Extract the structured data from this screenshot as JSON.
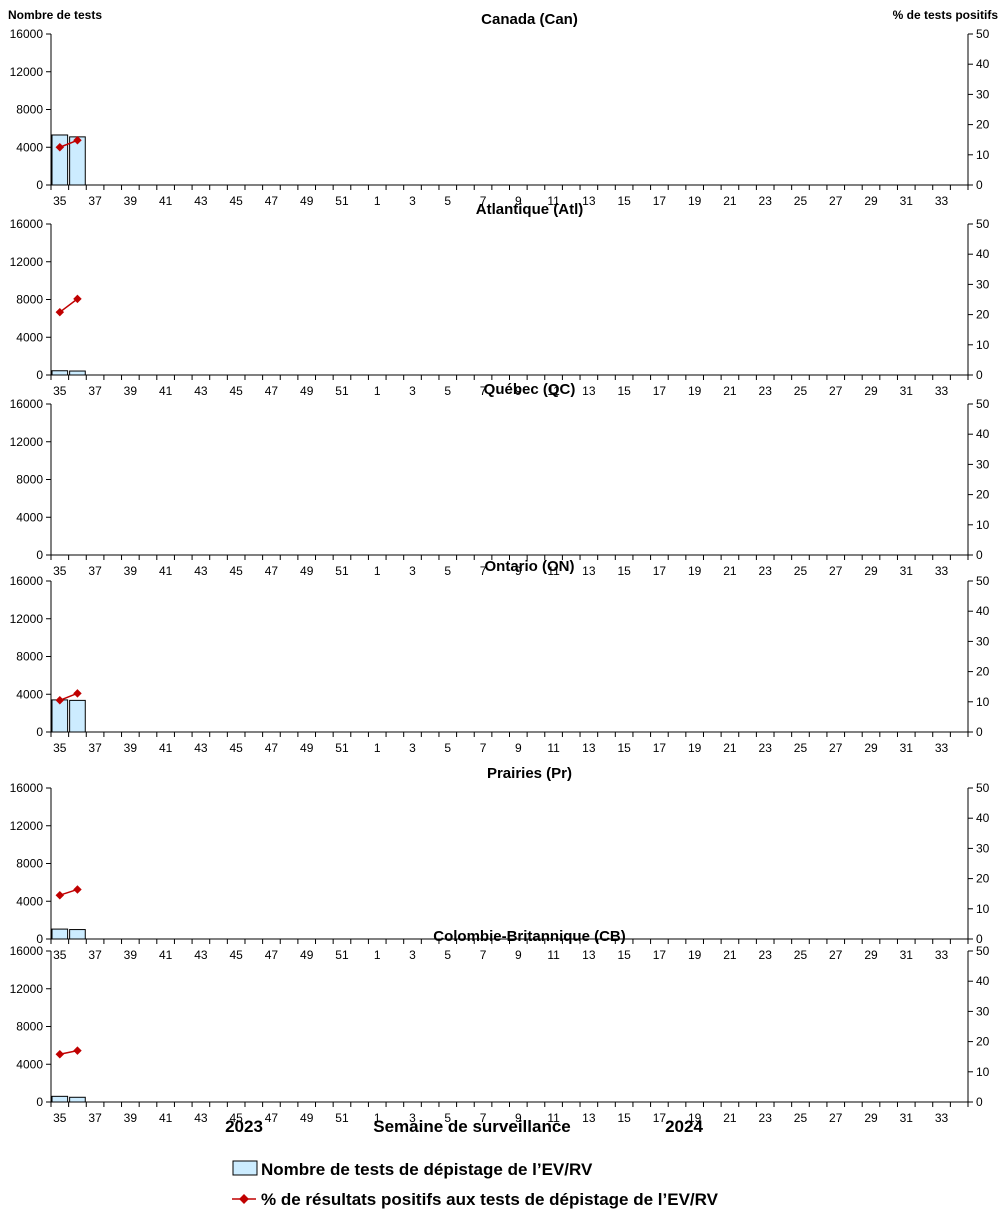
{
  "left_axis_title": "Nombre de tests",
  "right_axis_title": "% de tests positifs",
  "xlabel": "Semaine de surveillance",
  "year_start": "2023",
  "year_end": "2024",
  "legend": {
    "bars": "Nombre de tests de dépistage de l’EV/RV",
    "line": "% de résultats positifs aux tests de dépistage de l’EV/RV"
  },
  "colors": {
    "bar_fill": "#CCECFF",
    "bar_stroke": "#000000",
    "line": "#C00000"
  },
  "chart_data": [
    {
      "type": "bar+line",
      "title": "Canada (Can)",
      "weeks": [
        35,
        36,
        37,
        38,
        39,
        40,
        41,
        42,
        43,
        44,
        45,
        46,
        47,
        48,
        49,
        50,
        51,
        52,
        1,
        2,
        3,
        4,
        5,
        6,
        7,
        8,
        9,
        10,
        11,
        12,
        13,
        14,
        15,
        16,
        17,
        18,
        19,
        20,
        21,
        22,
        23,
        24,
        25,
        26,
        27,
        28,
        29,
        30,
        31,
        32,
        33,
        34
      ],
      "tick_labels": [
        "35",
        "37",
        "39",
        "41",
        "43",
        "45",
        "47",
        "49",
        "51",
        "1",
        "3",
        "5",
        "7",
        "9",
        "11",
        "13",
        "15",
        "17",
        "19",
        "21",
        "23",
        "25",
        "27",
        "29",
        "31",
        "33"
      ],
      "y_ticks": [
        0,
        4000,
        8000,
        12000,
        16000
      ],
      "y2_ticks": [
        0,
        10,
        20,
        30,
        40,
        50
      ],
      "ylim": [
        0,
        16000
      ],
      "y2lim": [
        0,
        50
      ],
      "tests": [
        5300,
        5100
      ],
      "pct_positive": [
        12.5,
        14.8
      ]
    },
    {
      "type": "bar+line",
      "title": "Atlantique (Atl)",
      "weeks": [
        35,
        36,
        37,
        38,
        39,
        40,
        41,
        42,
        43,
        44,
        45,
        46,
        47,
        48,
        49,
        50,
        51,
        52,
        1,
        2,
        3,
        4,
        5,
        6,
        7,
        8,
        9,
        10,
        11,
        12,
        13,
        14,
        15,
        16,
        17,
        18,
        19,
        20,
        21,
        22,
        23,
        24,
        25,
        26,
        27,
        28,
        29,
        30,
        31,
        32,
        33,
        34
      ],
      "tick_labels": [
        "35",
        "37",
        "39",
        "41",
        "43",
        "45",
        "47",
        "49",
        "51",
        "1",
        "3",
        "5",
        "7",
        "9",
        "11",
        "13",
        "15",
        "17",
        "19",
        "21",
        "23",
        "25",
        "27",
        "29",
        "31",
        "33"
      ],
      "y_ticks": [
        0,
        4000,
        8000,
        12000,
        16000
      ],
      "y2_ticks": [
        0,
        10,
        20,
        30,
        40,
        50
      ],
      "ylim": [
        0,
        16000
      ],
      "y2lim": [
        0,
        50
      ],
      "tests": [
        450,
        420
      ],
      "pct_positive": [
        20.8,
        25.2
      ]
    },
    {
      "type": "bar+line",
      "title": "Québec (QC)",
      "weeks": [
        35,
        36,
        37,
        38,
        39,
        40,
        41,
        42,
        43,
        44,
        45,
        46,
        47,
        48,
        49,
        50,
        51,
        52,
        1,
        2,
        3,
        4,
        5,
        6,
        7,
        8,
        9,
        10,
        11,
        12,
        13,
        14,
        15,
        16,
        17,
        18,
        19,
        20,
        21,
        22,
        23,
        24,
        25,
        26,
        27,
        28,
        29,
        30,
        31,
        32,
        33,
        34
      ],
      "tick_labels": [
        "35",
        "37",
        "39",
        "41",
        "43",
        "45",
        "47",
        "49",
        "51",
        "1",
        "3",
        "5",
        "7",
        "9",
        "11",
        "13",
        "15",
        "17",
        "19",
        "21",
        "23",
        "25",
        "27",
        "29",
        "31",
        "33"
      ],
      "y_ticks": [
        0,
        4000,
        8000,
        12000,
        16000
      ],
      "y2_ticks": [
        0,
        10,
        20,
        30,
        40,
        50
      ],
      "ylim": [
        0,
        16000
      ],
      "y2lim": [
        0,
        50
      ],
      "tests": [],
      "pct_positive": []
    },
    {
      "type": "bar+line",
      "title": "Ontario (ON)",
      "weeks": [
        35,
        36,
        37,
        38,
        39,
        40,
        41,
        42,
        43,
        44,
        45,
        46,
        47,
        48,
        49,
        50,
        51,
        52,
        1,
        2,
        3,
        4,
        5,
        6,
        7,
        8,
        9,
        10,
        11,
        12,
        13,
        14,
        15,
        16,
        17,
        18,
        19,
        20,
        21,
        22,
        23,
        24,
        25,
        26,
        27,
        28,
        29,
        30,
        31,
        32,
        33,
        34
      ],
      "tick_labels": [
        "35",
        "37",
        "39",
        "41",
        "43",
        "45",
        "47",
        "49",
        "51",
        "1",
        "3",
        "5",
        "7",
        "9",
        "11",
        "13",
        "15",
        "17",
        "19",
        "21",
        "23",
        "25",
        "27",
        "29",
        "31",
        "33"
      ],
      "y_ticks": [
        0,
        4000,
        8000,
        12000,
        16000
      ],
      "y2_ticks": [
        0,
        10,
        20,
        30,
        40,
        50
      ],
      "ylim": [
        0,
        16000
      ],
      "y2lim": [
        0,
        50
      ],
      "tests": [
        3400,
        3350
      ],
      "pct_positive": [
        10.5,
        12.8
      ]
    },
    {
      "type": "bar+line",
      "title": "Prairies (Pr)",
      "weeks": [
        35,
        36,
        37,
        38,
        39,
        40,
        41,
        42,
        43,
        44,
        45,
        46,
        47,
        48,
        49,
        50,
        51,
        52,
        1,
        2,
        3,
        4,
        5,
        6,
        7,
        8,
        9,
        10,
        11,
        12,
        13,
        14,
        15,
        16,
        17,
        18,
        19,
        20,
        21,
        22,
        23,
        24,
        25,
        26,
        27,
        28,
        29,
        30,
        31,
        32,
        33,
        34
      ],
      "tick_labels": [
        "35",
        "37",
        "39",
        "41",
        "43",
        "45",
        "47",
        "49",
        "51",
        "1",
        "3",
        "5",
        "7",
        "9",
        "11",
        "13",
        "15",
        "17",
        "19",
        "21",
        "23",
        "25",
        "27",
        "29",
        "31",
        "33"
      ],
      "y_ticks": [
        0,
        4000,
        8000,
        12000,
        16000
      ],
      "y2_ticks": [
        0,
        10,
        20,
        30,
        40,
        50
      ],
      "ylim": [
        0,
        16000
      ],
      "y2lim": [
        0,
        50
      ],
      "tests": [
        1050,
        1000
      ],
      "pct_positive": [
        14.5,
        16.4
      ]
    },
    {
      "type": "bar+line",
      "title": "Colombie-Britannique (CB)",
      "weeks": [
        35,
        36,
        37,
        38,
        39,
        40,
        41,
        42,
        43,
        44,
        45,
        46,
        47,
        48,
        49,
        50,
        51,
        52,
        1,
        2,
        3,
        4,
        5,
        6,
        7,
        8,
        9,
        10,
        11,
        12,
        13,
        14,
        15,
        16,
        17,
        18,
        19,
        20,
        21,
        22,
        23,
        24,
        25,
        26,
        27,
        28,
        29,
        30,
        31,
        32,
        33,
        34
      ],
      "tick_labels": [
        "35",
        "37",
        "39",
        "41",
        "43",
        "45",
        "47",
        "49",
        "51",
        "1",
        "3",
        "5",
        "7",
        "9",
        "11",
        "13",
        "15",
        "17",
        "19",
        "21",
        "23",
        "25",
        "27",
        "29",
        "31",
        "33"
      ],
      "y_ticks": [
        0,
        4000,
        8000,
        12000,
        16000
      ],
      "y2_ticks": [
        0,
        10,
        20,
        30,
        40,
        50
      ],
      "ylim": [
        0,
        16000
      ],
      "y2lim": [
        0,
        50
      ],
      "tests": [
        600,
        500
      ],
      "pct_positive": [
        15.8,
        17.0
      ]
    }
  ]
}
